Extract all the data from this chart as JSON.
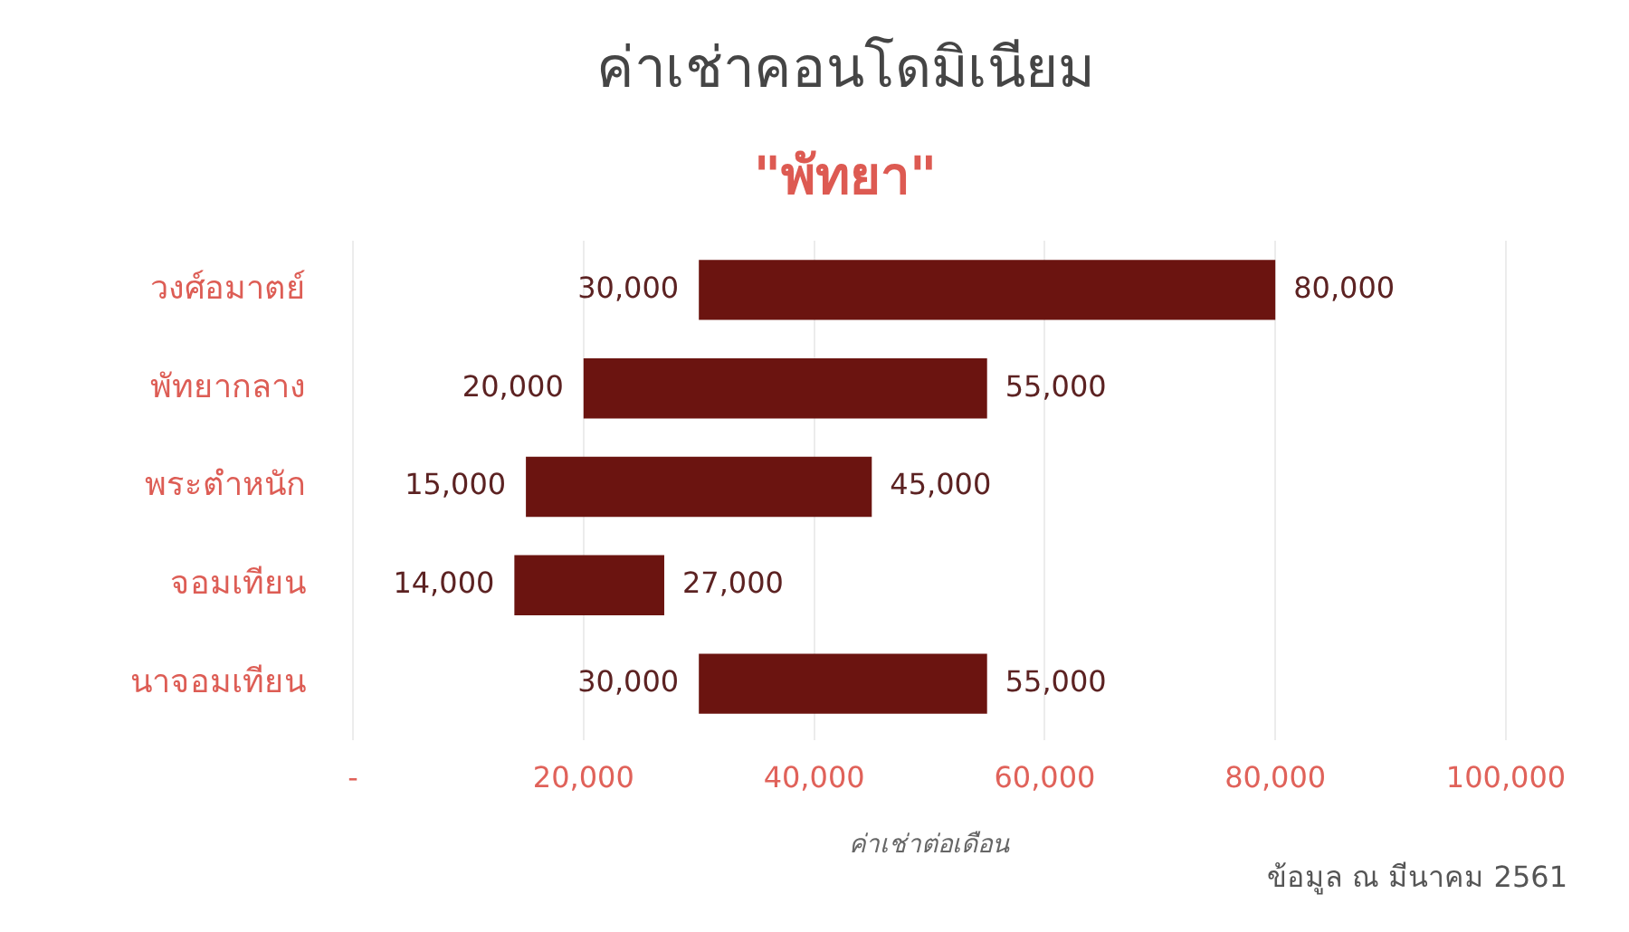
{
  "chart_data": {
    "type": "bar",
    "orientation": "horizontal",
    "title": "ค่าเช่าคอนโดมิเนียม",
    "subtitle": "\"พัทยา\"",
    "xlabel": "ค่าเช่าต่อเดือน",
    "categories": [
      "วงศ์อมาตย์",
      "พัทยากลาง",
      "พระตำหนัก",
      "จอมเทียน",
      "นาจอมเทียน"
    ],
    "base": [
      30000,
      20000,
      15000,
      14000,
      30000
    ],
    "values": [
      50000,
      35000,
      30000,
      13000,
      25000
    ],
    "color": "#6b1410",
    "xlim": [
      0,
      100000
    ],
    "xticks": [
      {
        "value": 0,
        "label": "-"
      },
      {
        "value": 20000,
        "label": "20,000"
      },
      {
        "value": 40000,
        "label": "40,000"
      },
      {
        "value": 60000,
        "label": "60,000"
      },
      {
        "value": 80000,
        "label": "80,000"
      },
      {
        "value": 100000,
        "label": "100,000"
      }
    ],
    "grid": "x",
    "legend": false,
    "annotations": [
      {
        "text": "30,000",
        "x": 30000,
        "y": "วงศ์อมาตย์"
      },
      {
        "text": "80,000",
        "x": 80000,
        "y": "วงศ์อมาตย์"
      },
      {
        "text": "20,000",
        "x": 20000,
        "y": "พัทยากลาง"
      },
      {
        "text": "55,000",
        "x": 55000,
        "y": "พัทยากลาง"
      },
      {
        "text": "15,000",
        "x": 15000,
        "y": "พระตำหนัก"
      },
      {
        "text": "45,000",
        "x": 45000,
        "y": "พระตำหนัก"
      },
      {
        "text": "14,000",
        "x": 14000,
        "y": "จอมเทียน"
      },
      {
        "text": "27,000",
        "x": 27000,
        "y": "จอมเทียน"
      },
      {
        "text": "30,000",
        "x": 30000,
        "y": "นาจอมเทียน"
      },
      {
        "text": "55,000",
        "x": 55000,
        "y": "นาจอมเทียน"
      },
      "ข้อมูล ณ มีนาคม 2561"
    ]
  }
}
